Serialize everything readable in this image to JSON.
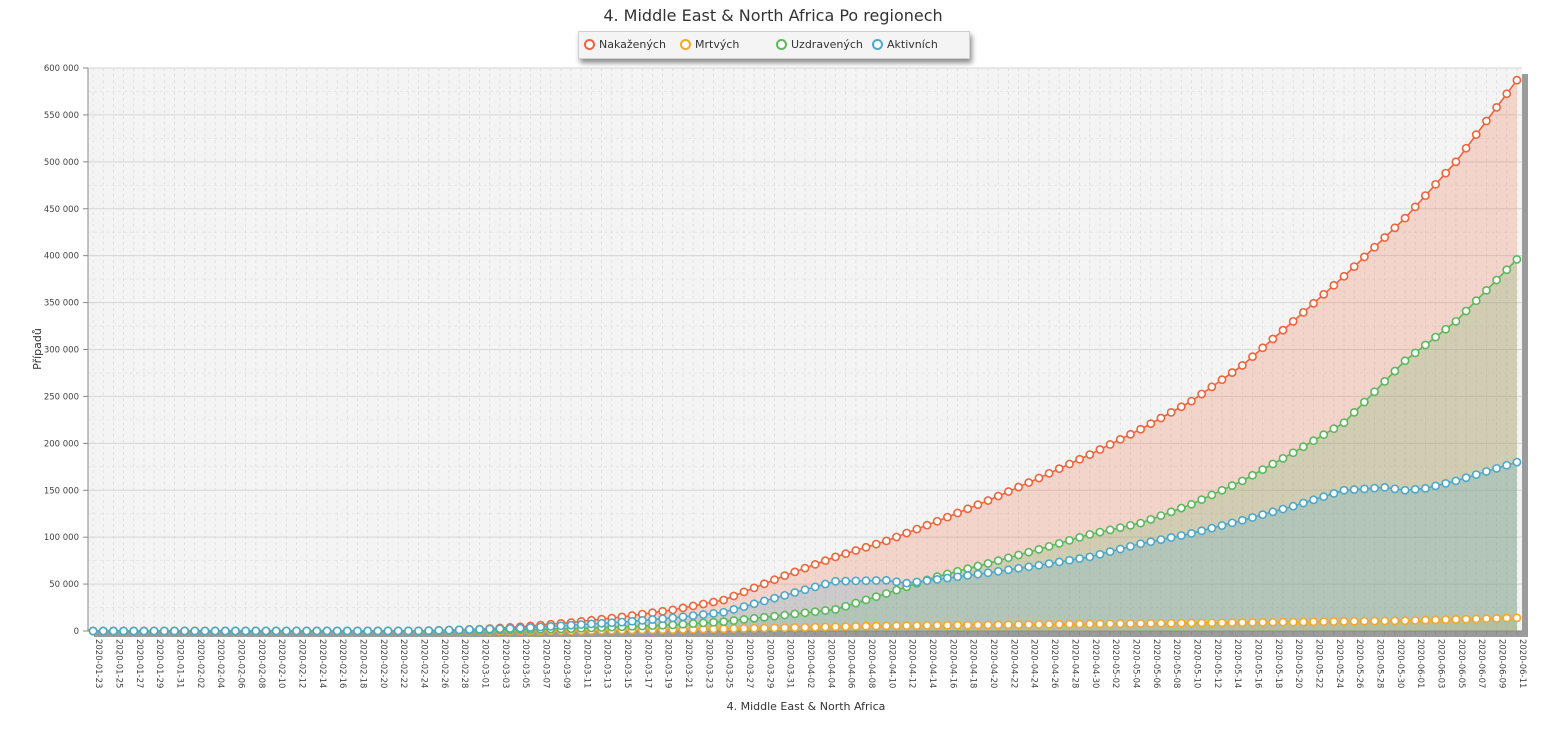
{
  "chart_data": {
    "type": "area",
    "title": "4. Middle East & North Africa Po regionech",
    "xlabel": "4. Middle East & North Africa",
    "ylabel": "Případů",
    "ylim": [
      0,
      600000
    ],
    "yticks": [
      0,
      50000,
      100000,
      150000,
      200000,
      250000,
      300000,
      350000,
      400000,
      450000,
      500000,
      550000,
      600000
    ],
    "ytick_labels": [
      "0",
      "50 000",
      "100 000",
      "150 000",
      "200 000",
      "250 000",
      "300 000",
      "350 000",
      "400 000",
      "450 000",
      "500 000",
      "550 000",
      "600 000"
    ],
    "x_start": "2020-01-23",
    "x_end": "2020-06-11",
    "x_tick_every_days": 2,
    "grid": true,
    "legend_position": "top-center",
    "series": [
      {
        "name": "Nakažených",
        "color": "#f0643a",
        "knots": [
          [
            "2020-01-23",
            0
          ],
          [
            "2020-02-15",
            0
          ],
          [
            "2020-02-24",
            100
          ],
          [
            "2020-03-01",
            2000
          ],
          [
            "2020-03-05",
            4500
          ],
          [
            "2020-03-10",
            9000
          ],
          [
            "2020-03-15",
            15000
          ],
          [
            "2020-03-20",
            22500
          ],
          [
            "2020-03-25",
            33000
          ],
          [
            "2020-03-31",
            59000
          ],
          [
            "2020-04-05",
            79000
          ],
          [
            "2020-04-10",
            96000
          ],
          [
            "2020-04-15",
            117000
          ],
          [
            "2020-04-20",
            139000
          ],
          [
            "2020-04-25",
            163000
          ],
          [
            "2020-04-30",
            188000
          ],
          [
            "2020-05-05",
            215000
          ],
          [
            "2020-05-10",
            245000
          ],
          [
            "2020-05-15",
            283000
          ],
          [
            "2020-05-20",
            330000
          ],
          [
            "2020-05-25",
            378000
          ],
          [
            "2020-05-31",
            440000
          ],
          [
            "2020-06-05",
            500000
          ],
          [
            "2020-06-11",
            587000
          ]
        ]
      },
      {
        "name": "Mrtvých",
        "color": "#f4a72b",
        "knots": [
          [
            "2020-01-23",
            0
          ],
          [
            "2020-02-20",
            0
          ],
          [
            "2020-03-01",
            50
          ],
          [
            "2020-03-10",
            300
          ],
          [
            "2020-03-20",
            1500
          ],
          [
            "2020-03-31",
            3500
          ],
          [
            "2020-04-10",
            5500
          ],
          [
            "2020-04-20",
            6500
          ],
          [
            "2020-04-30",
            7500
          ],
          [
            "2020-05-10",
            8500
          ],
          [
            "2020-05-20",
            9500
          ],
          [
            "2020-05-31",
            11000
          ],
          [
            "2020-06-11",
            14000
          ]
        ]
      },
      {
        "name": "Uzdravených",
        "color": "#5cb85c",
        "knots": [
          [
            "2020-01-23",
            0
          ],
          [
            "2020-02-25",
            0
          ],
          [
            "2020-03-05",
            1500
          ],
          [
            "2020-03-10",
            2500
          ],
          [
            "2020-03-15",
            4500
          ],
          [
            "2020-03-20",
            6500
          ],
          [
            "2020-03-25",
            10000
          ],
          [
            "2020-03-31",
            17000
          ],
          [
            "2020-04-05",
            23000
          ],
          [
            "2020-04-10",
            40000
          ],
          [
            "2020-04-15",
            58000
          ],
          [
            "2020-04-20",
            72000
          ],
          [
            "2020-04-25",
            87000
          ],
          [
            "2020-04-30",
            103000
          ],
          [
            "2020-05-05",
            115000
          ],
          [
            "2020-05-10",
            135000
          ],
          [
            "2020-05-15",
            160000
          ],
          [
            "2020-05-20",
            190000
          ],
          [
            "2020-05-25",
            222000
          ],
          [
            "2020-05-31",
            288000
          ],
          [
            "2020-06-05",
            330000
          ],
          [
            "2020-06-11",
            396000
          ]
        ]
      },
      {
        "name": "Aktivních",
        "color": "#4ba8cb",
        "knots": [
          [
            "2020-01-23",
            0
          ],
          [
            "2020-02-24",
            100
          ],
          [
            "2020-03-01",
            1800
          ],
          [
            "2020-03-05",
            3000
          ],
          [
            "2020-03-10",
            6200
          ],
          [
            "2020-03-15",
            9500
          ],
          [
            "2020-03-20",
            14000
          ],
          [
            "2020-03-25",
            20000
          ],
          [
            "2020-03-31",
            38000
          ],
          [
            "2020-04-05",
            53000
          ],
          [
            "2020-04-10",
            54000
          ],
          [
            "2020-04-12",
            51000
          ],
          [
            "2020-04-15",
            55000
          ],
          [
            "2020-04-20",
            62000
          ],
          [
            "2020-04-25",
            70000
          ],
          [
            "2020-04-30",
            79000
          ],
          [
            "2020-05-05",
            93000
          ],
          [
            "2020-05-10",
            104000
          ],
          [
            "2020-05-15",
            118000
          ],
          [
            "2020-05-20",
            133000
          ],
          [
            "2020-05-25",
            150000
          ],
          [
            "2020-05-29",
            153000
          ],
          [
            "2020-05-31",
            150000
          ],
          [
            "2020-06-02",
            152000
          ],
          [
            "2020-06-05",
            160000
          ],
          [
            "2020-06-11",
            180000
          ]
        ]
      }
    ]
  }
}
